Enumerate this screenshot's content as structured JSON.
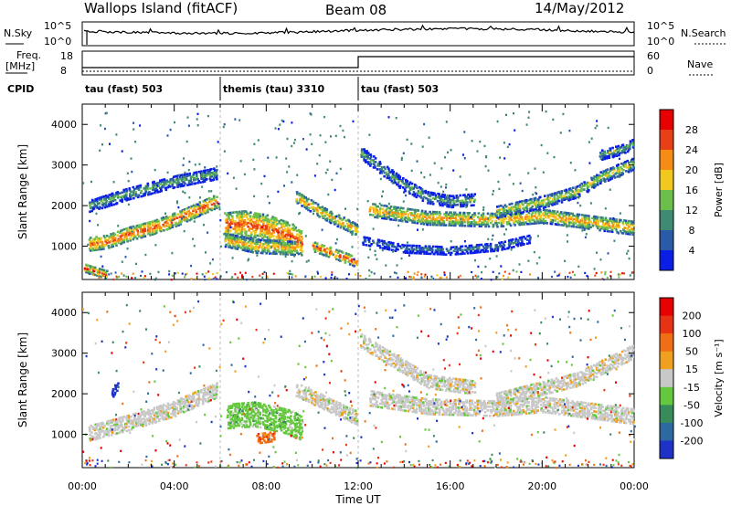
{
  "header": {
    "station": "Wallops Island (fitACF)",
    "beam": "Beam 08",
    "date": "14/May/2012"
  },
  "sky_panel": {
    "left_label": "N.Sky",
    "right_label": "N.Search",
    "left_ticks": [
      "10^5",
      "10^0"
    ],
    "right_ticks": [
      "10^5",
      "10^0"
    ]
  },
  "freq_panel": {
    "left_label_top": "Freq.",
    "left_label_bottom": "[MHz]",
    "right_label": "Nave",
    "left_ticks": [
      "18",
      "8"
    ],
    "right_ticks": [
      "60",
      "0"
    ]
  },
  "cpid": {
    "label": "CPID",
    "segments": [
      {
        "start": 0,
        "end": 6,
        "name": "tau (fast) 503"
      },
      {
        "start": 6,
        "end": 12,
        "name": "themis (tau) 3310"
      },
      {
        "start": 12,
        "end": 24,
        "name": "tau (fast) 503"
      }
    ]
  },
  "chart_data": [
    {
      "type": "heatmap",
      "title": "",
      "xlabel": "Time UT",
      "ylabel": "Slant Range [km]",
      "xlim": [
        0,
        24
      ],
      "ylim": [
        180,
        4500
      ],
      "x_tick_labels": [
        "00:00",
        "04:00",
        "08:00",
        "12:00",
        "16:00",
        "20:00",
        "00:00"
      ],
      "y_ticks": [
        1000,
        2000,
        3000,
        4000
      ],
      "colorbar": {
        "label": "Power [dB]",
        "ticks": [
          "4",
          "8",
          "12",
          "16",
          "20",
          "24",
          "28"
        ],
        "colors": [
          "#0a1ee6",
          "#2a5aa8",
          "#3f8a73",
          "#6cbf4a",
          "#f0c81e",
          "#f58c14",
          "#e84016",
          "#e60000"
        ]
      },
      "bands": [
        {
          "t": [
            0.3,
            1,
            2,
            3,
            4,
            5,
            5.8
          ],
          "r": [
            1050,
            1100,
            1300,
            1450,
            1650,
            1900,
            2100
          ],
          "w": 160,
          "level": 6
        },
        {
          "t": [
            0.3,
            2,
            4,
            5.8
          ],
          "r": [
            2000,
            2300,
            2600,
            2800
          ],
          "w": 150,
          "level": 3
        },
        {
          "t": [
            6.2,
            7,
            8,
            9,
            9.5
          ],
          "r": [
            1500,
            1550,
            1450,
            1250,
            1100
          ],
          "w": 320,
          "level": 6
        },
        {
          "t": [
            6.2,
            7.5,
            9.2
          ],
          "r": [
            1150,
            1000,
            950
          ],
          "w": 160,
          "level": 5
        },
        {
          "t": [
            9.3,
            10.5,
            11.9
          ],
          "r": [
            2200,
            1800,
            1400
          ],
          "w": 140,
          "level": 5
        },
        {
          "t": [
            10.0,
            11.0,
            11.95
          ],
          "r": [
            1000,
            800,
            600
          ],
          "w": 120,
          "level": 6
        },
        {
          "t": [
            12.1,
            13,
            14,
            15,
            16,
            17
          ],
          "r": [
            3300,
            2900,
            2500,
            2200,
            2100,
            2150
          ],
          "w": 140,
          "level": 3
        },
        {
          "t": [
            12.2,
            14,
            16,
            18,
            19.5
          ],
          "r": [
            1150,
            950,
            900,
            1000,
            1200
          ],
          "w": 110,
          "level": 2
        },
        {
          "t": [
            12.5,
            15,
            18,
            20,
            22,
            24
          ],
          "r": [
            1900,
            1700,
            1650,
            1750,
            1600,
            1450
          ],
          "w": 170,
          "level": 5
        },
        {
          "t": [
            18,
            20,
            21.5,
            22.5,
            24
          ],
          "r": [
            1850,
            2100,
            2350,
            2700,
            3050
          ],
          "w": 150,
          "level": 4
        },
        {
          "t": [
            22.5,
            23.5,
            24
          ],
          "r": [
            3250,
            3400,
            3550
          ],
          "w": 130,
          "level": 3
        },
        {
          "t": [
            0.1,
            1.0
          ],
          "r": [
            450,
            300
          ],
          "w": 90,
          "level": 6
        }
      ]
    },
    {
      "type": "heatmap",
      "title": "",
      "xlabel": "Time UT",
      "ylabel": "Slant Range [km]",
      "xlim": [
        0,
        24
      ],
      "ylim": [
        180,
        4500
      ],
      "x_tick_labels": [
        "00:00",
        "04:00",
        "08:00",
        "12:00",
        "16:00",
        "20:00",
        "00:00"
      ],
      "y_ticks": [
        1000,
        2000,
        3000,
        4000
      ],
      "colorbar": {
        "label": "Velocity [m s⁻¹]",
        "ticks": [
          "200",
          "100",
          "50",
          "15",
          "-15",
          "-50",
          "-100",
          "-200"
        ],
        "colors": [
          "#1e32c8",
          "#2d69a0",
          "#378c5a",
          "#64c83c",
          "#c8c8c8",
          "#f0a01e",
          "#f06e14",
          "#e83214",
          "#e60000"
        ]
      },
      "bands": [
        {
          "t": [
            0.3,
            2,
            4,
            5.8
          ],
          "r": [
            1050,
            1300,
            1650,
            2100
          ],
          "w": 200,
          "level": 4
        },
        {
          "t": [
            6.3,
            7.5,
            9,
            9.5
          ],
          "r": [
            1450,
            1500,
            1300,
            1150
          ],
          "w": 300,
          "level": 3
        },
        {
          "t": [
            7.6,
            8.3
          ],
          "r": [
            900,
            950
          ],
          "w": 120,
          "level": 6
        },
        {
          "t": [
            9.3,
            11.9
          ],
          "r": [
            2100,
            1400
          ],
          "w": 160,
          "level": 4
        },
        {
          "t": [
            12.1,
            15,
            17
          ],
          "r": [
            3300,
            2300,
            2150
          ],
          "w": 160,
          "level": 4
        },
        {
          "t": [
            12.5,
            15,
            18,
            20,
            22,
            24
          ],
          "r": [
            1900,
            1700,
            1650,
            1750,
            1600,
            1450
          ],
          "w": 200,
          "level": 4
        },
        {
          "t": [
            18,
            21.5,
            24
          ],
          "r": [
            1850,
            2350,
            3050
          ],
          "w": 160,
          "level": 4
        },
        {
          "t": [
            1.3,
            1.6
          ],
          "r": [
            2050,
            2200
          ],
          "w": 120,
          "level": 0
        }
      ]
    }
  ]
}
